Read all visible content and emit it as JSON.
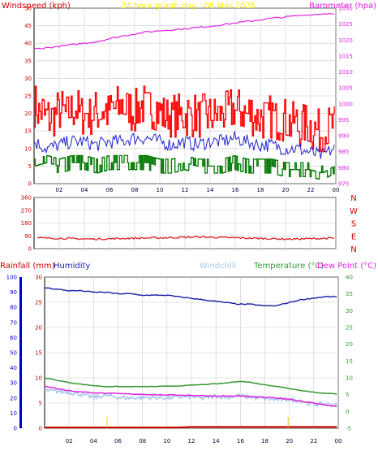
{
  "title": "24 hour graph day : 08 Mar 2025",
  "colors": {
    "frame": "#000000",
    "grid": "#cccccc",
    "wind_axis": "#cc0000",
    "baro": "#e020e0",
    "gust": "#ff0000",
    "avg": "#2222cc",
    "min_wind": "#007700",
    "dir": "#dd2222",
    "rain": "#cc0000",
    "humidity": "#1a1aaa",
    "humidity_axis": "#0000cc",
    "windchill": "#a8c8ee",
    "temperature": "#339933",
    "dewpoint": "#dd22dd",
    "title": "#ffee00"
  },
  "x_ticks": [
    "02",
    "04",
    "06",
    "08",
    "10",
    "12",
    "14",
    "16",
    "18",
    "20",
    "22",
    "00"
  ],
  "panel1": {
    "left_label": "Windspeed (kph)",
    "right_label": "Barometer (hpa)",
    "left_ticks": [
      "0",
      "5",
      "10",
      "15",
      "20",
      "25",
      "30",
      "35",
      "40",
      "45",
      "50"
    ],
    "right_ticks": [
      "975",
      "980",
      "985",
      "990",
      "995",
      "1000",
      "1005",
      "1010",
      "1015",
      "1020",
      "1025",
      "1030"
    ]
  },
  "panel2": {
    "left_ticks": [
      "0",
      "90",
      "180",
      "270",
      "360"
    ],
    "right_ticks": [
      "N",
      "E",
      "S",
      "W",
      "N"
    ]
  },
  "panel3": {
    "rain_label": "Rainfall (mm)",
    "humidity_label": "Humidity",
    "windchill_label": "Windchill",
    "temperature_label": "Temperature (°C)",
    "dewpoint_label": "Dew Point (°C)",
    "rain_ticks": [
      "0",
      "5",
      "10",
      "15",
      "20",
      "25",
      "30"
    ],
    "humidity_ticks": [
      "0",
      "10",
      "20",
      "30",
      "40",
      "50",
      "60",
      "70",
      "80",
      "90",
      "100"
    ],
    "temp_ticks": [
      "-5",
      "0",
      "5",
      "10",
      "15",
      "20",
      "25",
      "30",
      "35",
      "40"
    ]
  },
  "chart_data": [
    {
      "type": "line",
      "title": "24 hour graph day : 08 Mar 2025",
      "x": [
        0,
        1,
        2,
        3,
        4,
        5,
        6,
        7,
        8,
        9,
        10,
        11,
        12,
        13,
        14,
        15,
        16,
        17,
        18,
        19,
        20,
        21,
        22,
        23,
        24
      ],
      "ylim_left": [
        0,
        50
      ],
      "ylim_right": [
        975,
        1030
      ],
      "series": [
        {
          "name": "Gust",
          "axis": "left",
          "values": [
            22,
            19,
            20,
            21,
            20,
            20,
            21,
            22,
            21,
            22,
            21,
            19,
            20,
            19,
            20,
            20,
            21,
            20,
            19,
            19,
            18,
            17,
            16,
            15,
            16
          ]
        },
        {
          "name": "Average",
          "axis": "left",
          "values": [
            12,
            10,
            11,
            12,
            12,
            11,
            12,
            12,
            13,
            13,
            12,
            11,
            12,
            11,
            12,
            12,
            13,
            12,
            11,
            11,
            10,
            10,
            9,
            8,
            10
          ]
        },
        {
          "name": "Min",
          "axis": "left",
          "values": [
            5,
            6,
            5,
            6,
            6,
            5,
            6,
            6,
            6,
            6,
            5,
            5,
            6,
            5,
            5,
            5,
            6,
            5,
            5,
            5,
            4,
            4,
            4,
            3,
            5
          ]
        },
        {
          "name": "Barometer",
          "axis": "right",
          "values": [
            1017.2,
            1017.6,
            1018,
            1018.5,
            1019,
            1019.5,
            1020.4,
            1021.2,
            1021.9,
            1022.5,
            1022.9,
            1023.2,
            1023.5,
            1023.9,
            1024.3,
            1024.8,
            1025.3,
            1025.8,
            1026.3,
            1026.8,
            1027.2,
            1027.6,
            1027.9,
            1028.2,
            1028.4
          ]
        }
      ]
    },
    {
      "type": "line",
      "ylim": [
        0,
        360
      ],
      "series": [
        {
          "name": "Direction",
          "values": [
            75,
            74,
            72,
            70,
            68,
            68,
            70,
            72,
            74,
            75,
            76,
            78,
            80,
            82,
            80,
            78,
            76,
            74,
            72,
            70,
            68,
            68,
            70,
            72,
            74
          ]
        }
      ]
    },
    {
      "type": "line",
      "rain_ylim": [
        0,
        30
      ],
      "humidity_ylim": [
        0,
        100
      ],
      "temp_ylim": [
        -5,
        40
      ],
      "series": [
        {
          "name": "Humidity",
          "axis": "humidity",
          "values": [
            93,
            92,
            91,
            91,
            90,
            90,
            89,
            89,
            88,
            88,
            88,
            87,
            86,
            85,
            84,
            83,
            82,
            82,
            81,
            81,
            83,
            85,
            86,
            87,
            87
          ]
        },
        {
          "name": "Temperature (°C)",
          "axis": "temp",
          "values": [
            10.0,
            9.3,
            8.6,
            8.1,
            7.7,
            7.4,
            7.4,
            7.4,
            7.4,
            7.4,
            7.5,
            7.6,
            7.8,
            8.0,
            8.2,
            8.5,
            9.0,
            8.6,
            8.0,
            7.5,
            6.9,
            6.3,
            5.8,
            5.4,
            5.2
          ]
        },
        {
          "name": "Dew Point (°C)",
          "axis": "temp",
          "values": [
            7.6,
            6.8,
            6.2,
            5.8,
            5.6,
            5.4,
            5.3,
            5.2,
            5.1,
            5.0,
            4.9,
            4.9,
            4.8,
            4.7,
            4.6,
            4.6,
            4.6,
            4.4,
            4.2,
            4.0,
            3.6,
            3.1,
            2.6,
            2.0,
            1.4
          ]
        },
        {
          "name": "Windchill",
          "axis": "temp",
          "values": [
            6.2,
            6.0,
            5.7,
            5.1,
            4.2,
            4.8,
            4.2,
            4.0,
            4.1,
            4.2,
            4.0,
            4.3,
            4.4,
            3.9,
            4.6,
            4.2,
            4.7,
            4.2,
            3.8,
            3.5,
            3.6,
            3.3,
            2.1,
            2.3,
            1.8
          ]
        },
        {
          "name": "Rainfall (mm)",
          "axis": "rain",
          "values": [
            0,
            0,
            0,
            0,
            0,
            0,
            0,
            0,
            0,
            0,
            0,
            0,
            0.1,
            0.1,
            0.1,
            0.1,
            0.1,
            0.1,
            0.1,
            0.1,
            0.1,
            0.1,
            0.1,
            0.1,
            0.1
          ]
        }
      ]
    }
  ]
}
